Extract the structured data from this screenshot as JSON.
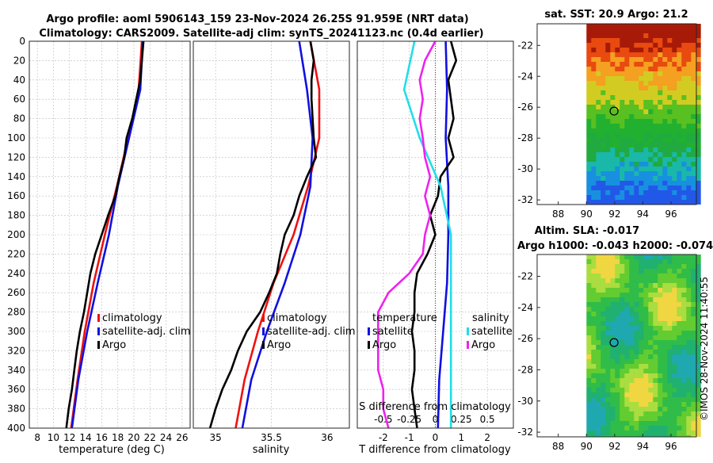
{
  "header": {
    "title_line1": "Argo profile: aoml 5906143_159 23-Nov-2024 26.25S 91.959E (NRT data)",
    "title_line2": "Climatology: CARS2009. Satellite-adj clim: synTS_20241123.nc (0.4d earlier)"
  },
  "footer": {
    "credit": "©IMOS 28-Nov-2024 11:40:55"
  },
  "colors": {
    "climatology": "#ee1111",
    "satellite": "#1010e0",
    "argo": "#000000",
    "sal_sat": "#22dde8",
    "sal_argo": "#ee22ee"
  },
  "chart_data": [
    {
      "id": "temperature",
      "type": "line",
      "xlabel": "temperature (deg C)",
      "xlim": [
        7,
        27
      ],
      "xticks": [
        8,
        10,
        12,
        14,
        16,
        18,
        20,
        22,
        24,
        26
      ],
      "ylim": [
        400,
        0
      ],
      "yticks": [
        0,
        20,
        40,
        60,
        80,
        100,
        120,
        140,
        160,
        180,
        200,
        220,
        240,
        260,
        280,
        300,
        320,
        340,
        360,
        380,
        400
      ],
      "legend": [
        "climatology",
        "satellite-adj. clim",
        "Argo"
      ],
      "series": [
        {
          "name": "climatology",
          "color": "#ee1111",
          "depth": [
            0,
            50,
            100,
            150,
            200,
            250,
            300,
            350,
            400
          ],
          "values": [
            21.0,
            20.6,
            19.3,
            17.9,
            16.4,
            15.0,
            13.9,
            13.0,
            12.2
          ]
        },
        {
          "name": "satellite-adj. clim",
          "color": "#1010e0",
          "depth": [
            0,
            50,
            100,
            150,
            200,
            250,
            300,
            350,
            400
          ],
          "values": [
            21.1,
            20.8,
            19.4,
            18.0,
            16.9,
            15.5,
            14.2,
            13.1,
            12.3
          ]
        },
        {
          "name": "Argo",
          "color": "#000000",
          "depth": [
            0,
            20,
            40,
            60,
            80,
            100,
            120,
            140,
            160,
            180,
            200,
            220,
            240,
            260,
            280,
            300,
            320,
            340,
            360,
            380,
            400
          ],
          "values": [
            21.2,
            21.0,
            20.8,
            20.3,
            19.8,
            19.1,
            18.8,
            18.2,
            17.7,
            16.8,
            16.0,
            15.2,
            14.6,
            14.2,
            13.8,
            13.3,
            12.9,
            12.6,
            12.3,
            11.9,
            11.6
          ]
        }
      ]
    },
    {
      "id": "salinity",
      "type": "line",
      "xlabel": "salinity",
      "xlim": [
        34.8,
        36.2
      ],
      "xticks": [
        35,
        35.5,
        36
      ],
      "ylim": [
        400,
        0
      ],
      "legend": [
        "climatology",
        "satellite-adj. clim",
        "Argo"
      ],
      "series": [
        {
          "name": "climatology",
          "color": "#ee1111",
          "depth": [
            0,
            50,
            100,
            150,
            200,
            250,
            300,
            350,
            400
          ],
          "values": [
            35.85,
            35.93,
            35.93,
            35.83,
            35.7,
            35.52,
            35.38,
            35.26,
            35.18
          ]
        },
        {
          "name": "satellite-adj. clim",
          "color": "#1010e0",
          "depth": [
            0,
            50,
            100,
            150,
            200,
            250,
            300,
            350,
            400
          ],
          "values": [
            35.75,
            35.82,
            35.87,
            35.85,
            35.76,
            35.62,
            35.46,
            35.32,
            35.24
          ]
        },
        {
          "name": "Argo",
          "color": "#000000",
          "depth": [
            0,
            20,
            40,
            60,
            80,
            100,
            120,
            140,
            160,
            180,
            200,
            220,
            240,
            260,
            280,
            300,
            320,
            340,
            360,
            380,
            400
          ],
          "values": [
            35.85,
            35.88,
            35.86,
            35.86,
            35.87,
            35.88,
            35.9,
            35.82,
            35.75,
            35.7,
            35.62,
            35.58,
            35.55,
            35.48,
            35.4,
            35.28,
            35.2,
            35.14,
            35.06,
            35.0,
            34.95
          ]
        }
      ]
    },
    {
      "id": "difference",
      "type": "line",
      "xlabel": "T difference from climatology",
      "xlabel_top": "S difference from climatology",
      "xlim": [
        -3,
        3
      ],
      "xticks": [
        -2,
        -1,
        0,
        1,
        2
      ],
      "xticks_top_labels": [
        "-0.5",
        "-0.25",
        "0",
        "0.25",
        "0.5"
      ],
      "ylim": [
        400,
        0
      ],
      "legend_headers": [
        "temperature",
        "salinity"
      ],
      "legend": [
        "satellite",
        "Argo",
        "satellite",
        "Argo"
      ],
      "series": [
        {
          "name": "T satellite",
          "color": "#1010e0",
          "depth": [
            0,
            50,
            100,
            150,
            200,
            250,
            300,
            350,
            400
          ],
          "values": [
            0.4,
            0.45,
            0.4,
            0.5,
            0.5,
            0.45,
            0.3,
            0.15,
            0.1
          ]
        },
        {
          "name": "T Argo",
          "color": "#000000",
          "depth": [
            0,
            20,
            40,
            60,
            80,
            100,
            120,
            140,
            160,
            180,
            200,
            220,
            240,
            260,
            280,
            300,
            320,
            340,
            360,
            380,
            400
          ],
          "values": [
            0.6,
            0.8,
            0.5,
            0.6,
            0.7,
            0.5,
            0.7,
            0.2,
            0.1,
            -0.2,
            0.0,
            -0.3,
            -0.7,
            -0.8,
            -0.8,
            -0.9,
            -0.8,
            -0.8,
            -0.9,
            -0.8,
            -0.7
          ]
        },
        {
          "name": "S satellite",
          "color": "#22dde8",
          "depth": [
            0,
            50,
            100,
            150,
            200,
            250,
            300,
            350,
            400
          ],
          "values": [
            -0.2,
            -0.3,
            -0.15,
            0.05,
            0.15,
            0.15,
            0.15,
            0.15,
            0.15
          ]
        },
        {
          "name": "S Argo",
          "color": "#ee22ee",
          "depth": [
            0,
            20,
            40,
            60,
            80,
            100,
            120,
            140,
            160,
            180,
            200,
            220,
            240,
            260,
            280,
            300,
            320,
            340,
            360,
            380,
            400
          ],
          "values": [
            0.0,
            -0.1,
            -0.15,
            -0.12,
            -0.15,
            -0.12,
            -0.1,
            -0.05,
            -0.1,
            -0.05,
            -0.1,
            -0.12,
            -0.25,
            -0.45,
            -0.55,
            -0.55,
            -0.55,
            -0.55,
            -0.5,
            -0.5,
            -0.45
          ]
        }
      ]
    },
    {
      "id": "sst_map",
      "type": "heatmap",
      "title": "sat. SST: 20.9 Argo: 21.2",
      "xticks": [
        88,
        90,
        92,
        94,
        96
      ],
      "yticks": [
        -22,
        -24,
        -26,
        -28,
        -30,
        -32
      ],
      "xlim": [
        86.5,
        97.8
      ],
      "ylim": [
        -32.3,
        -20.6
      ],
      "data_xrange": [
        90,
        97.8
      ],
      "argo_position": [
        91.959,
        -26.25
      ]
    },
    {
      "id": "sla_map",
      "type": "heatmap",
      "title_line1": "Altim. SLA: -0.017",
      "title_line2": "Argo h1000: -0.043 h2000: -0.074",
      "xticks": [
        88,
        90,
        92,
        94,
        96
      ],
      "yticks": [
        -22,
        -24,
        -26,
        -28,
        -30,
        -32
      ],
      "xlim": [
        86.5,
        97.8
      ],
      "ylim": [
        -32.3,
        -20.6
      ],
      "data_xrange": [
        90,
        97.8
      ],
      "argo_position": [
        91.959,
        -26.25
      ]
    }
  ]
}
